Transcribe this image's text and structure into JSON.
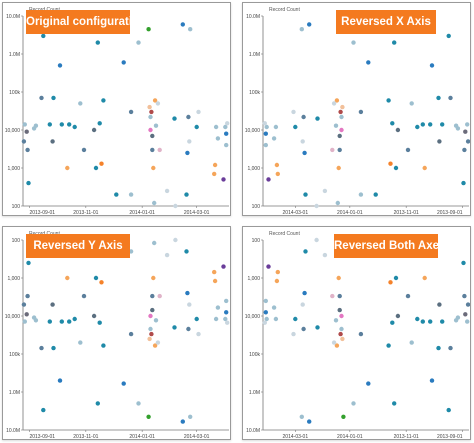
{
  "page": {
    "background": "#ffffff",
    "badge_color": "#f47a1f",
    "badge_text_color": "#ffffff"
  },
  "chart_data": [
    {
      "type": "scatter",
      "title": "Original configuration",
      "ylabel": "Record Count",
      "y_scale": "log",
      "ylim": [
        100,
        10000000
      ],
      "y_reversed": false,
      "x_reversed": false,
      "x_ticks": [
        "2013-09-01",
        "2013-11-01",
        "2014-01-01",
        "2014-03-01"
      ],
      "y_ticks": [
        "100",
        "1,000",
        "10,000",
        "100k",
        "1.0M",
        "10.0M"
      ],
      "grid": false
    },
    {
      "type": "scatter",
      "title": "Reversed X Axis",
      "ylabel": "Record Count",
      "y_scale": "log",
      "ylim": [
        100,
        10000000
      ],
      "y_reversed": false,
      "x_reversed": true,
      "x_ticks": [
        "2014-03-01",
        "2014-01-01",
        "2013-11-01",
        "2013-09-01"
      ],
      "y_ticks": [
        "100",
        "1,000",
        "10,000",
        "100k",
        "1.0M",
        "10.0M"
      ],
      "grid": false
    },
    {
      "type": "scatter",
      "title": "Reversed Y Axis",
      "ylabel": "Record Count",
      "y_scale": "log",
      "ylim": [
        100,
        10000000
      ],
      "y_reversed": true,
      "x_reversed": false,
      "x_ticks": [
        "2013-09-01",
        "2013-11-01",
        "2014-01-01",
        "2014-03-01"
      ],
      "y_ticks": [
        "100",
        "1,000",
        "10,000",
        "100k",
        "1.0M",
        "10.0M"
      ],
      "grid": false
    },
    {
      "type": "scatter",
      "title": "Reversed Both Axes",
      "ylabel": "Record Count",
      "y_scale": "log",
      "ylim": [
        100,
        10000000
      ],
      "y_reversed": true,
      "x_reversed": true,
      "x_ticks": [
        "2014-03-01",
        "2014-01-01",
        "2013-11-01",
        "2013-09-01"
      ],
      "y_ticks": [
        "100",
        "1,000",
        "10,000",
        "100k",
        "1.0M",
        "10.0M"
      ],
      "grid": false
    }
  ],
  "points": [
    {
      "date": "2013-08-26",
      "count": 5000,
      "color": "#5b7f9c"
    },
    {
      "date": "2013-08-27",
      "count": 14000,
      "color": "#9dbfcf"
    },
    {
      "date": "2013-08-29",
      "count": 9000,
      "color": "#6b6b7a"
    },
    {
      "date": "2013-08-30",
      "count": 3000,
      "color": "#5b7f9c"
    },
    {
      "date": "2013-08-31",
      "count": 400,
      "color": "#1f8aa8"
    },
    {
      "date": "2013-09-06",
      "count": 11000,
      "color": "#9dbfcf"
    },
    {
      "date": "2013-09-08",
      "count": 13000,
      "color": "#9dbfcf"
    },
    {
      "date": "2013-09-14",
      "count": 70000,
      "color": "#5b7f9c"
    },
    {
      "date": "2013-09-16",
      "count": 3000000,
      "color": "#1f8aa8"
    },
    {
      "date": "2013-09-23",
      "count": 14000,
      "color": "#1f8aa8"
    },
    {
      "date": "2013-09-26",
      "count": 5000,
      "color": "#5b6f80"
    },
    {
      "date": "2013-09-27",
      "count": 70000,
      "color": "#1f8aa8"
    },
    {
      "date": "2013-10-04",
      "count": 500000,
      "color": "#2a7bbf"
    },
    {
      "date": "2013-10-06",
      "count": 14000,
      "color": "#1f8aa8"
    },
    {
      "date": "2013-10-12",
      "count": 1000,
      "color": "#f5a55a"
    },
    {
      "date": "2013-10-14",
      "count": 14000,
      "color": "#1f8aa8"
    },
    {
      "date": "2013-10-20",
      "count": 12000,
      "color": "#1f8aa8"
    },
    {
      "date": "2013-10-26",
      "count": 50000,
      "color": "#9dbfcf"
    },
    {
      "date": "2013-10-30",
      "count": 3000,
      "color": "#5b7f9c"
    },
    {
      "date": "2013-11-10",
      "count": 10000,
      "color": "#5b6f80"
    },
    {
      "date": "2013-11-12",
      "count": 1000,
      "color": "#1f8aa8"
    },
    {
      "date": "2013-11-14",
      "count": 2000000,
      "color": "#1f8aa8"
    },
    {
      "date": "2013-11-16",
      "count": 15000,
      "color": "#1f8aa8"
    },
    {
      "date": "2013-11-18",
      "count": 1300,
      "color": "#f5822a"
    },
    {
      "date": "2013-11-20",
      "count": 60000,
      "color": "#1f8aa8"
    },
    {
      "date": "2013-12-04",
      "count": 200,
      "color": "#1f8aa8"
    },
    {
      "date": "2013-12-12",
      "count": 600000,
      "color": "#2a7bbf"
    },
    {
      "date": "2013-12-20",
      "count": 30000,
      "color": "#5b7f9c"
    },
    {
      "date": "2013-12-20",
      "count": 200,
      "color": "#9dbfcf"
    },
    {
      "date": "2013-12-28",
      "count": 2000000,
      "color": "#9dbfcf"
    },
    {
      "date": "2014-01-08",
      "count": 4500000,
      "color": "#33a02c"
    },
    {
      "date": "2014-01-09",
      "count": 40000,
      "color": "#f2c09a"
    },
    {
      "date": "2014-01-10",
      "count": 22000,
      "color": "#9dbfcf"
    },
    {
      "date": "2014-01-10",
      "count": 10000,
      "color": "#e377c2"
    },
    {
      "date": "2014-01-11",
      "count": 30000,
      "color": "#b04a4a"
    },
    {
      "date": "2014-01-12",
      "count": 7000,
      "color": "#5b6f80"
    },
    {
      "date": "2014-01-12",
      "count": 3000,
      "color": "#5b7f9c"
    },
    {
      "date": "2014-01-13",
      "count": 1000,
      "color": "#f5a55a"
    },
    {
      "date": "2014-01-14",
      "count": 120,
      "color": "#9dbfcf"
    },
    {
      "date": "2014-01-15",
      "count": 60000,
      "color": "#f5a55a"
    },
    {
      "date": "2014-01-16",
      "count": 13000,
      "color": "#9dbfcf"
    },
    {
      "date": "2014-01-18",
      "count": 50000,
      "color": "#c9d6df"
    },
    {
      "date": "2014-01-20",
      "count": 3000,
      "color": "#e0b3c8"
    },
    {
      "date": "2014-01-28",
      "count": 250,
      "color": "#c9d6df"
    },
    {
      "date": "2014-02-05",
      "count": 20000,
      "color": "#1f8aa8"
    },
    {
      "date": "2014-02-06",
      "count": 100,
      "color": "#c9d6df"
    },
    {
      "date": "2014-02-14",
      "count": 6000000,
      "color": "#2a7bbf"
    },
    {
      "date": "2014-02-18",
      "count": 200,
      "color": "#1f8aa8"
    },
    {
      "date": "2014-02-19",
      "count": 2500,
      "color": "#2a7bbf"
    },
    {
      "date": "2014-02-20",
      "count": 22000,
      "color": "#5b7f9c"
    },
    {
      "date": "2014-02-21",
      "count": 5000,
      "color": "#c9d6df"
    },
    {
      "date": "2014-02-22",
      "count": 4500000,
      "color": "#9dbfcf"
    },
    {
      "date": "2014-03-01",
      "count": 12000,
      "color": "#1f8aa8"
    },
    {
      "date": "2014-03-03",
      "count": 30000,
      "color": "#c9d6df"
    },
    {
      "date": "2014-03-20",
      "count": 700,
      "color": "#f5a55a"
    },
    {
      "date": "2014-03-21",
      "count": 1200,
      "color": "#f5a55a"
    },
    {
      "date": "2014-03-22",
      "count": 12000,
      "color": "#9dbfcf"
    },
    {
      "date": "2014-03-24",
      "count": 6000,
      "color": "#9dbfcf"
    },
    {
      "date": "2014-03-30",
      "count": 500,
      "color": "#6a3d9a"
    },
    {
      "date": "2014-04-01",
      "count": 12000,
      "color": "#9dbfcf"
    },
    {
      "date": "2014-04-02",
      "count": 8000,
      "color": "#2a7bbf"
    },
    {
      "date": "2014-04-02",
      "count": 4000,
      "color": "#9dbfcf"
    },
    {
      "date": "2014-04-03",
      "count": 15000,
      "color": "#c9d6df"
    }
  ]
}
